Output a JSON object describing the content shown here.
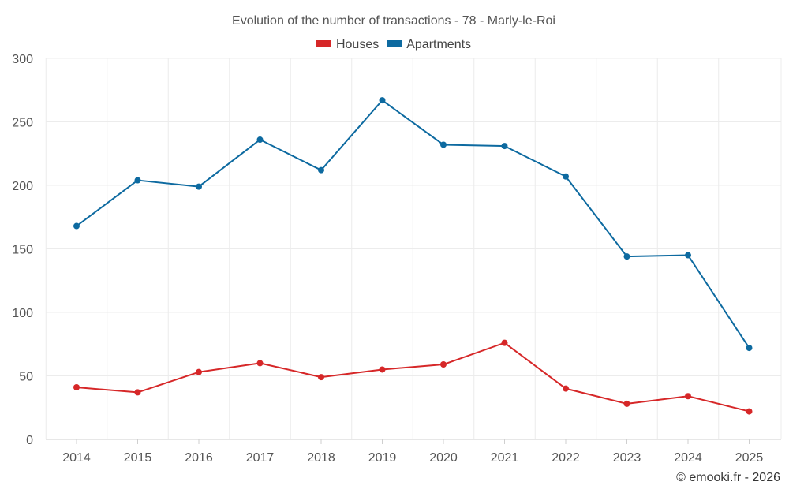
{
  "chart_data": {
    "type": "line",
    "title": "Evolution of the number of transactions - 78 - Marly-le-Roi",
    "categories": [
      "2014",
      "2015",
      "2016",
      "2017",
      "2018",
      "2019",
      "2020",
      "2021",
      "2022",
      "2023",
      "2024",
      "2025"
    ],
    "ylim": [
      0,
      300
    ],
    "yticks": [
      0,
      50,
      100,
      150,
      200,
      250,
      300
    ],
    "grid": true,
    "legend": "top-center",
    "series": [
      {
        "name": "Houses",
        "color": "#d62728",
        "values": [
          41,
          37,
          53,
          60,
          49,
          55,
          59,
          76,
          40,
          28,
          34,
          22
        ]
      },
      {
        "name": "Apartments",
        "color": "#0d6aa0",
        "values": [
          168,
          204,
          199,
          236,
          212,
          267,
          232,
          231,
          207,
          144,
          145,
          72
        ]
      }
    ]
  },
  "credit": "© emooki.fr - 2026"
}
